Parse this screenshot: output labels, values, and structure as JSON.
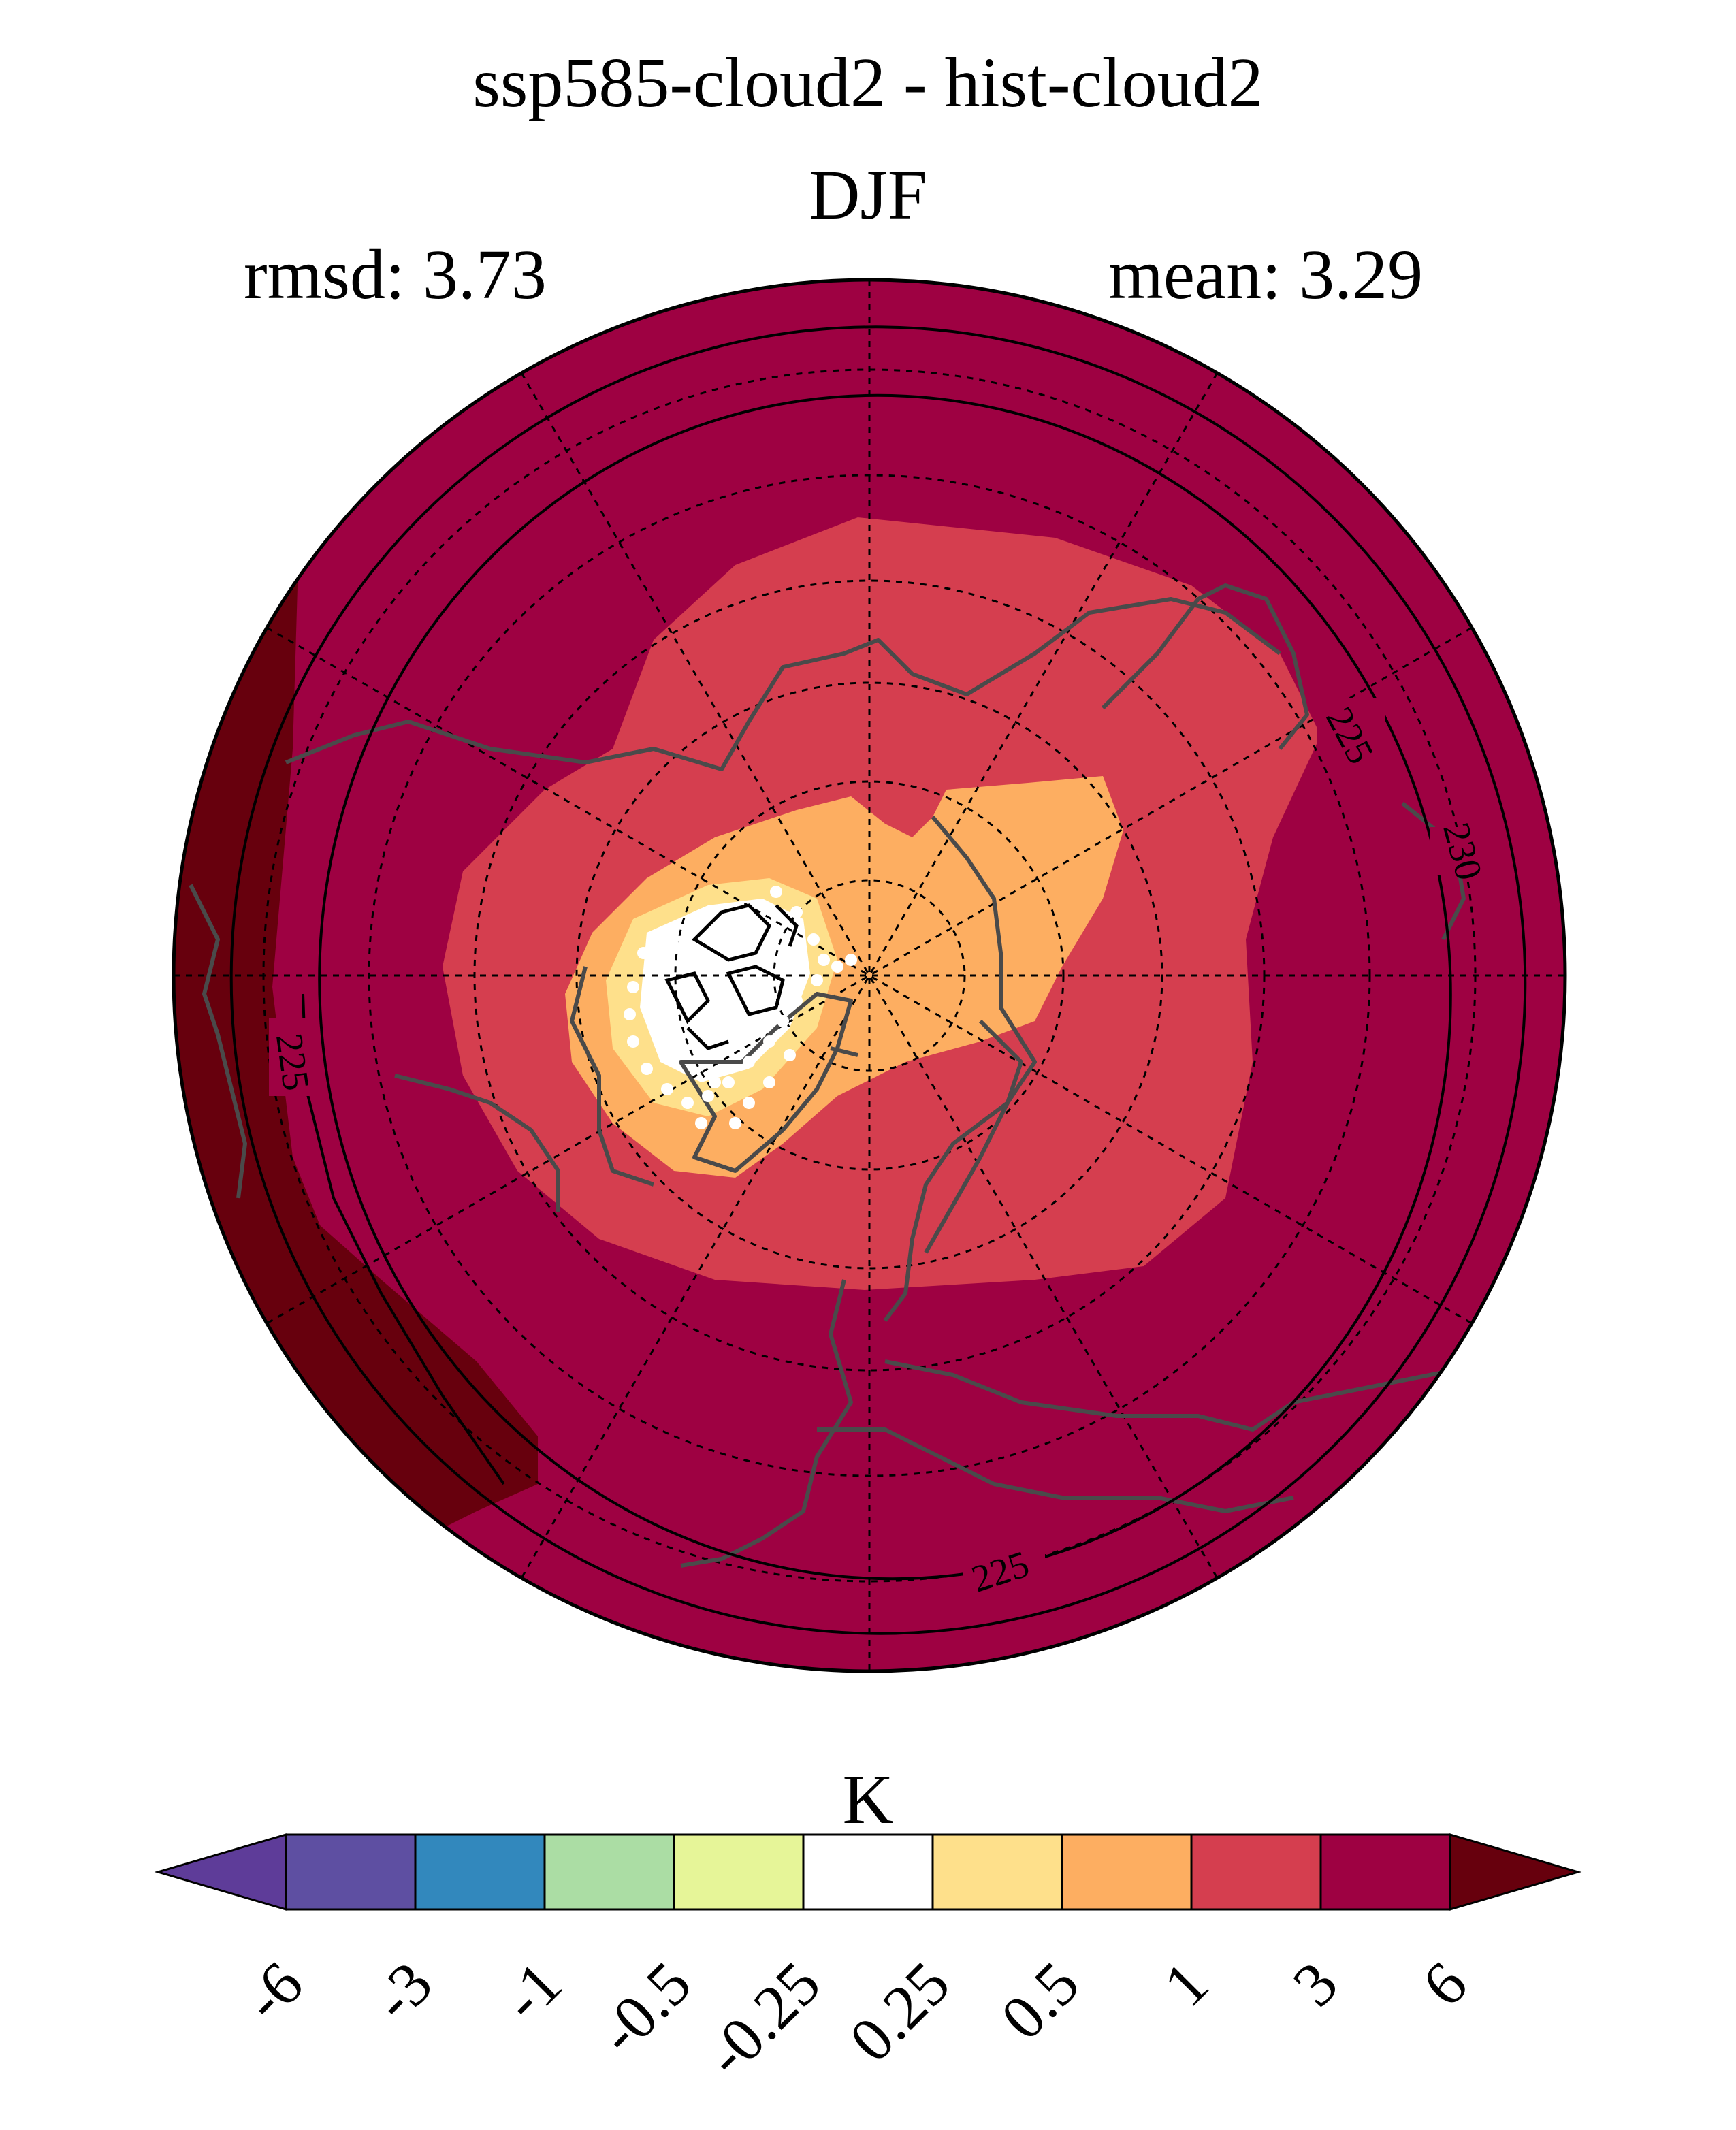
{
  "title": "ssp585-cloud2 - hist-cloud2",
  "season": "DJF",
  "rmsd_text": "rmsd: 3.73",
  "mean_text": "mean: 3.29",
  "colorbar": {
    "unit": "K",
    "levels": [
      "-6",
      "-3",
      "-1",
      "-0.5",
      "-0.25",
      "0.25",
      "0.5",
      "1",
      "3",
      "6"
    ],
    "colors": [
      "#5e3c99",
      "#5e4fa2",
      "#3288bd",
      "#abdda4",
      "#e6f598",
      "#ffffff",
      "#fee08b",
      "#fdae61",
      "#d53e4f",
      "#9e0142",
      "#67000d"
    ]
  },
  "map": {
    "projection": "north-polar-stereographic",
    "region_colors": {
      "outer_extreme": "#67000d",
      "background": "#9e0142",
      "ring_1_to_3": "#d53e4f",
      "ring_0.5_to_1": "#fdae61",
      "ring_0.25_to_0.5": "#fee08b",
      "center_near_zero": "#ffffff"
    },
    "coastline_color": "#4a4a4a",
    "stipple_color": "#ffffff",
    "contour_labels": [
      "225",
      "230",
      "225",
      "225"
    ]
  }
}
